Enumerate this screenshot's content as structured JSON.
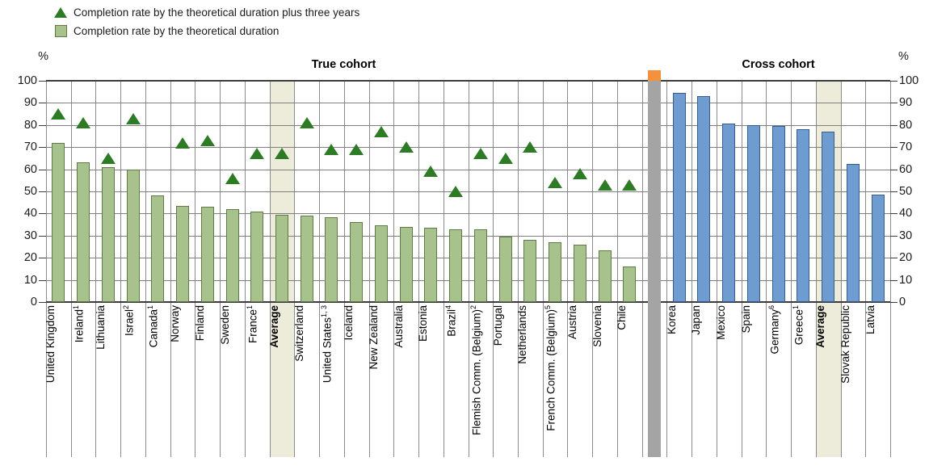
{
  "legend": [
    {
      "marker": "triangle",
      "label": "Completion rate by the theoretical duration plus three years"
    },
    {
      "marker": "square",
      "label": "Completion rate by the theoretical duration"
    }
  ],
  "axis": {
    "unit_left": "%",
    "unit_right": "%",
    "ticks": [
      0,
      10,
      20,
      30,
      40,
      50,
      60,
      70,
      80,
      90,
      100
    ]
  },
  "chart_data": {
    "type": "bar",
    "title": "",
    "ylim": [
      0,
      100
    ],
    "grid": true,
    "legend_position": "top-left",
    "series_meaning": {
      "bar": "Completion rate by the theoretical duration",
      "triangle": "Completion rate by the theoretical duration plus three years"
    },
    "sections": [
      {
        "title": "True cohort",
        "bar_style": "green",
        "items": [
          {
            "name": "United Kingdom",
            "sup": "",
            "bar": 72,
            "triangle": 85
          },
          {
            "name": "Ireland",
            "sup": "1",
            "bar": 63,
            "triangle": 81
          },
          {
            "name": "Lithuania",
            "sup": "",
            "bar": 61,
            "triangle": 65
          },
          {
            "name": "Israel",
            "sup": "2",
            "bar": 60,
            "triangle": 83
          },
          {
            "name": "Canada",
            "sup": "1",
            "bar": 48,
            "triangle": null
          },
          {
            "name": "Norway",
            "sup": "",
            "bar": 43.5,
            "triangle": 72
          },
          {
            "name": "Finland",
            "sup": "",
            "bar": 43,
            "triangle": 73
          },
          {
            "name": "Sweden",
            "sup": "",
            "bar": 42,
            "triangle": 56
          },
          {
            "name": "France",
            "sup": "1",
            "bar": 41,
            "triangle": 67
          },
          {
            "name": "Average",
            "sup": "",
            "bar": 39.5,
            "triangle": 67,
            "highlight": true,
            "bold": true
          },
          {
            "name": "Switzerland",
            "sup": "",
            "bar": 39,
            "triangle": 81
          },
          {
            "name": "United States",
            "sup": "1, 3",
            "bar": 38.5,
            "triangle": 69
          },
          {
            "name": "Iceland",
            "sup": "",
            "bar": 36,
            "triangle": 69
          },
          {
            "name": "New Zealand",
            "sup": "",
            "bar": 34.5,
            "triangle": 77
          },
          {
            "name": "Australia",
            "sup": "",
            "bar": 34,
            "triangle": 70
          },
          {
            "name": "Estonia",
            "sup": "",
            "bar": 33.5,
            "triangle": 59
          },
          {
            "name": "Brazil",
            "sup": "4",
            "bar": 33,
            "triangle": 50
          },
          {
            "name": "Flemish Comm. (Belgium)",
            "sup": "2",
            "bar": 33,
            "triangle": 67
          },
          {
            "name": "Portugal",
            "sup": "",
            "bar": 29.5,
            "triangle": 65
          },
          {
            "name": "Netherlands",
            "sup": "",
            "bar": 28,
            "triangle": 70
          },
          {
            "name": "French Comm. (Belgium)",
            "sup": "5",
            "bar": 27,
            "triangle": 54
          },
          {
            "name": "Austria",
            "sup": "",
            "bar": 26,
            "triangle": 58
          },
          {
            "name": "Slovenia",
            "sup": "",
            "bar": 23.5,
            "triangle": 53
          },
          {
            "name": "Chile",
            "sup": "",
            "bar": 16,
            "triangle": 53
          }
        ]
      },
      {
        "title": "Cross cohort",
        "bar_style": "blue",
        "items": [
          {
            "name": "Korea",
            "sup": "",
            "bar": 94.5,
            "triangle": null
          },
          {
            "name": "Japan",
            "sup": "",
            "bar": 93,
            "triangle": null
          },
          {
            "name": "Mexico",
            "sup": "",
            "bar": 80.5,
            "triangle": null
          },
          {
            "name": "Spain",
            "sup": "",
            "bar": 80,
            "triangle": null
          },
          {
            "name": "Germany",
            "sup": "6",
            "bar": 79.5,
            "triangle": null
          },
          {
            "name": "Greece",
            "sup": "1",
            "bar": 78,
            "triangle": null
          },
          {
            "name": "Average",
            "sup": "",
            "bar": 77,
            "triangle": null,
            "highlight": true,
            "bold": true
          },
          {
            "name": "Slovak Republic",
            "sup": "",
            "bar": 62.5,
            "triangle": null
          },
          {
            "name": "Latvia",
            "sup": "",
            "bar": 48.5,
            "triangle": null
          }
        ]
      }
    ]
  },
  "colors": {
    "green_bar": "#a8c28e",
    "green_bar_border": "#5f7a47",
    "blue_bar": "#6f9cd0",
    "blue_bar_border": "#365f8d",
    "triangle": "#2e7b26",
    "highlight": "#edecdb",
    "separator_gray": "#a4a4a4",
    "separator_orange_cap": "#f5913d",
    "gridline": "#7f7f7f"
  }
}
